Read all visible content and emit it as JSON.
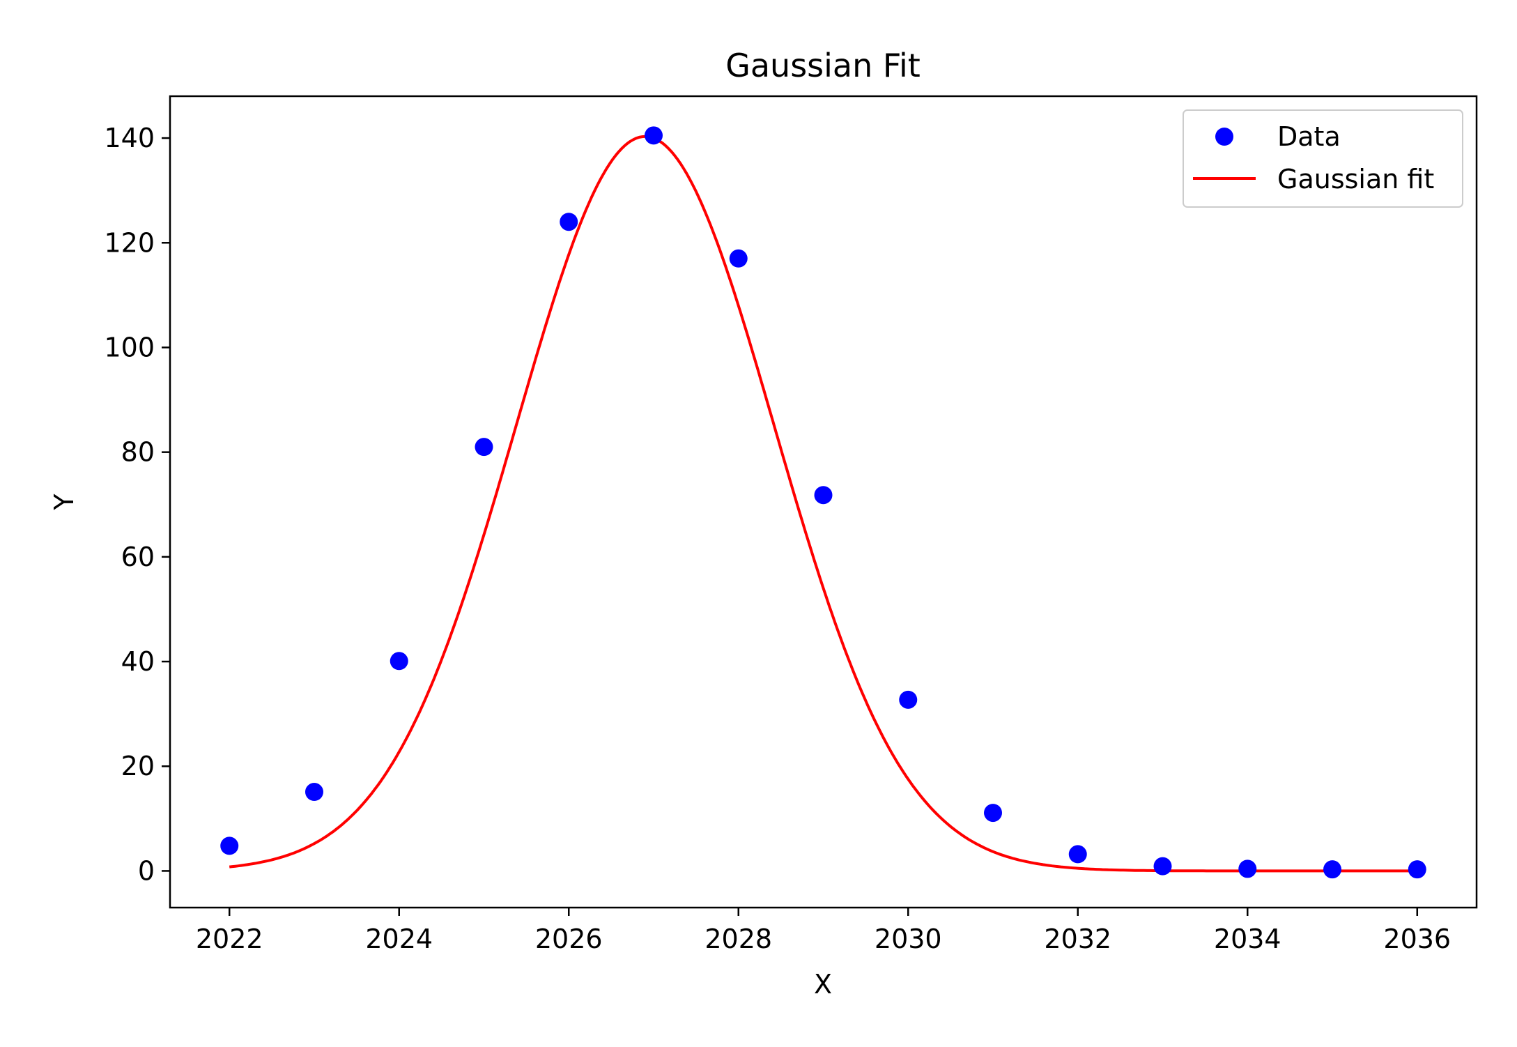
{
  "chart_data": {
    "type": "scatter",
    "title": "Gaussian Fit",
    "xlabel": "X",
    "ylabel": "Y",
    "xlim": [
      2021.3,
      2036.7
    ],
    "ylim": [
      -7,
      148
    ],
    "xticks": [
      2022,
      2024,
      2026,
      2028,
      2030,
      2032,
      2034,
      2036
    ],
    "yticks": [
      0,
      20,
      40,
      60,
      80,
      100,
      120,
      140
    ],
    "grid": false,
    "legend_position": "top-right",
    "series": [
      {
        "name": "Data",
        "kind": "scatter",
        "color": "#0000ff",
        "x": [
          2022,
          2023,
          2024,
          2025,
          2026,
          2027,
          2028,
          2029,
          2030,
          2031,
          2032,
          2033,
          2034,
          2035,
          2036
        ],
        "y": [
          4.8,
          15.1,
          40.1,
          81.0,
          124.0,
          140.5,
          117.0,
          71.8,
          32.7,
          11.1,
          3.2,
          0.9,
          0.4,
          0.3,
          0.3
        ]
      },
      {
        "name": "Gaussian fit",
        "kind": "line",
        "color": "#ff0000",
        "model": "gaussian",
        "amplitude": 140.3,
        "mean": 2026.9,
        "sigma": 1.52,
        "x_range": [
          2022,
          2036
        ]
      }
    ]
  }
}
